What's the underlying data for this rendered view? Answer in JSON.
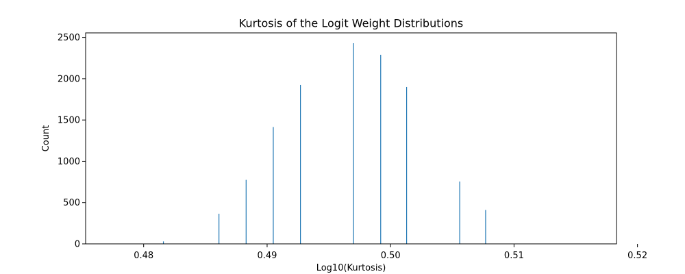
{
  "chart_data": {
    "type": "bar",
    "title": "Kurtosis of the Logit Weight Distributions",
    "xlabel": "Log10(Kurtosis)",
    "ylabel": "Count",
    "xlim": [
      0.4753,
      0.5183
    ],
    "ylim": [
      0,
      2555
    ],
    "xticks": [
      "0.48",
      "0.49",
      "0.50",
      "0.51",
      "0.52"
    ],
    "yticks": [
      "0",
      "500",
      "1000",
      "1500",
      "2000",
      "2500"
    ],
    "grid": false,
    "bar_color": "#1f77b4",
    "x": [
      0.4816,
      0.4861,
      0.4883,
      0.4905,
      0.4927,
      0.497,
      0.4992,
      0.5013,
      0.5056,
      0.5077
    ],
    "values": [
      30,
      365,
      775,
      1415,
      1925,
      2430,
      2290,
      1900,
      755,
      410
    ]
  }
}
